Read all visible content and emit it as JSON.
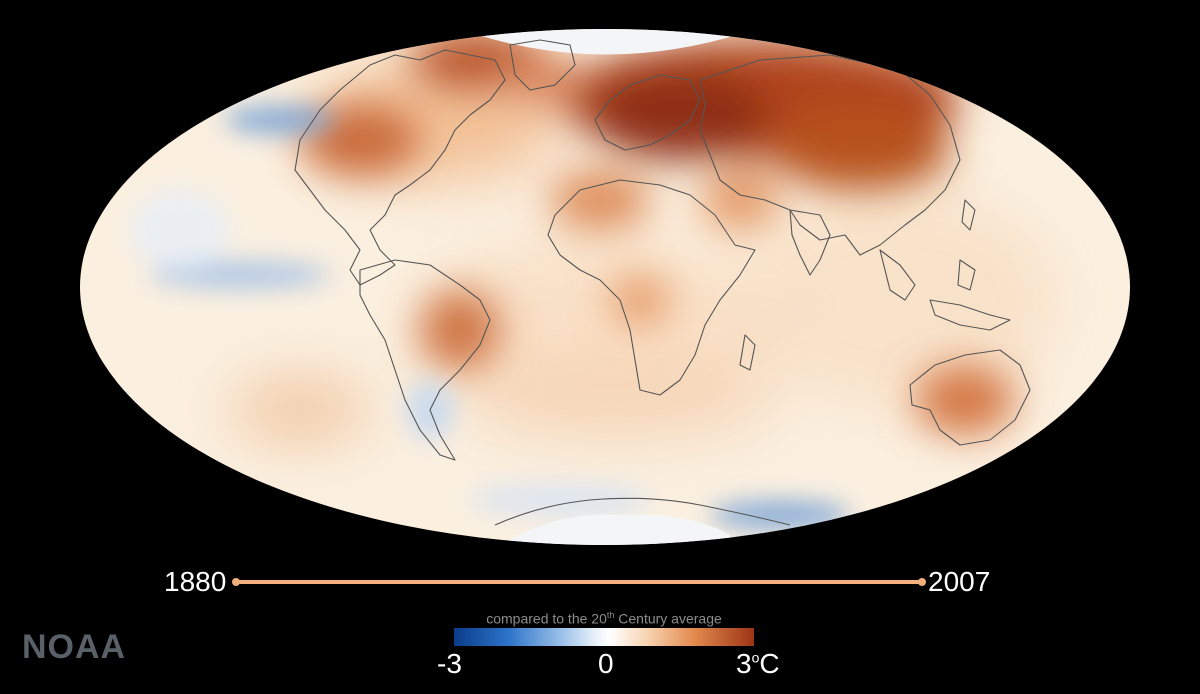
{
  "timeline": {
    "start_year": "1880",
    "end_year": "2007",
    "progress": 1.0
  },
  "logo": "NOAA",
  "legend": {
    "caption_pre": "compared to the 20",
    "caption_sup": "th",
    "caption_post": " Century average",
    "min_label": "-3",
    "mid_label": "0",
    "max_label": "3",
    "max_unit_sup": "o",
    "max_unit": "C",
    "colors": {
      "cold": "#0a3c8a",
      "neutral": "#ffffff",
      "warm": "#9c3415"
    }
  },
  "map": {
    "projection": "mollweide",
    "ocean_base_color": "#fbf0e0"
  }
}
